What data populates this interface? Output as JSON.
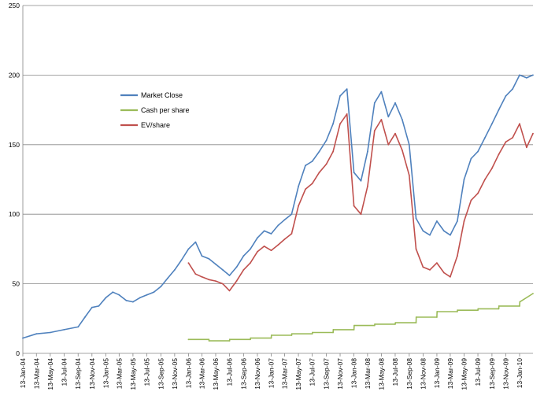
{
  "chart_data": {
    "type": "line",
    "title": "",
    "xlabel": "",
    "ylabel": "",
    "ylim": [
      0,
      250
    ],
    "yticks": [
      0,
      50,
      100,
      150,
      200,
      250
    ],
    "grid": "horizontal",
    "legend_position": "upper-left",
    "xlim": [
      "2004-01-13",
      "2010-03-13"
    ],
    "xtick_labels": [
      "13-Jan-04",
      "13-Mar-04",
      "13-May-04",
      "13-Jul-04",
      "13-Sep-04",
      "13-Nov-04",
      "13-Jan-05",
      "13-Mar-05",
      "13-May-05",
      "13-Jul-05",
      "13-Sep-05",
      "13-Nov-05",
      "13-Jan-06",
      "13-Mar-06",
      "13-May-06",
      "13-Jul-06",
      "13-Sep-06",
      "13-Nov-06",
      "13-Jan-07",
      "13-Mar-07",
      "13-May-07",
      "13-Jul-07",
      "13-Sep-07",
      "13-Nov-07",
      "13-Jan-08",
      "13-Mar-08",
      "13-May-08",
      "13-Jul-08",
      "13-Sep-08",
      "13-Nov-08",
      "13-Jan-09",
      "13-Mar-09",
      "13-May-09",
      "13-Jul-09",
      "13-Sep-09",
      "13-Nov-09",
      "13-Jan-10"
    ],
    "series": [
      {
        "name": "Market Close",
        "color": "#4F81BD",
        "x": [
          "2004-01-13",
          "2004-03-13",
          "2004-05-13",
          "2004-07-13",
          "2004-09-13",
          "2004-10-13",
          "2004-11-13",
          "2004-12-13",
          "2005-01-13",
          "2005-02-13",
          "2005-03-13",
          "2005-04-13",
          "2005-05-13",
          "2005-06-13",
          "2005-07-13",
          "2005-08-13",
          "2005-09-13",
          "2005-10-13",
          "2005-11-13",
          "2005-12-13",
          "2006-01-13",
          "2006-02-13",
          "2006-03-13",
          "2006-04-13",
          "2006-05-13",
          "2006-06-13",
          "2006-07-13",
          "2006-08-13",
          "2006-09-13",
          "2006-10-13",
          "2006-11-13",
          "2006-12-13",
          "2007-01-13",
          "2007-02-13",
          "2007-03-13",
          "2007-04-13",
          "2007-05-13",
          "2007-06-13",
          "2007-07-13",
          "2007-08-13",
          "2007-09-13",
          "2007-10-13",
          "2007-11-13",
          "2007-12-13",
          "2008-01-13",
          "2008-02-13",
          "2008-03-13",
          "2008-04-13",
          "2008-05-13",
          "2008-06-13",
          "2008-07-13",
          "2008-08-13",
          "2008-09-13",
          "2008-10-13",
          "2008-11-13",
          "2008-12-13",
          "2009-01-13",
          "2009-02-13",
          "2009-03-13",
          "2009-04-13",
          "2009-05-13",
          "2009-06-13",
          "2009-07-13",
          "2009-08-13",
          "2009-09-13",
          "2009-10-13",
          "2009-11-13",
          "2009-12-13",
          "2010-01-13",
          "2010-02-13",
          "2010-03-13"
        ],
        "values": [
          11,
          14,
          15,
          17,
          19,
          26,
          33,
          34,
          40,
          44,
          42,
          38,
          37,
          40,
          42,
          44,
          48,
          54,
          60,
          67,
          75,
          80,
          70,
          68,
          64,
          60,
          56,
          62,
          70,
          75,
          83,
          88,
          86,
          92,
          96,
          100,
          120,
          135,
          138,
          145,
          153,
          165,
          185,
          190,
          130,
          124,
          145,
          180,
          188,
          170,
          180,
          168,
          150,
          97,
          88,
          85,
          95,
          88,
          85,
          95,
          125,
          140,
          145,
          155,
          165,
          175,
          185,
          190,
          200,
          198,
          200
        ]
      },
      {
        "name": "Cash per share",
        "color": "#9BBB59",
        "x": [
          "2006-01-13",
          "2006-04-13",
          "2006-04-14",
          "2006-07-13",
          "2006-07-14",
          "2006-10-13",
          "2006-10-14",
          "2007-01-13",
          "2007-01-14",
          "2007-04-13",
          "2007-04-14",
          "2007-07-13",
          "2007-07-14",
          "2007-10-13",
          "2007-10-14",
          "2008-01-13",
          "2008-01-14",
          "2008-04-13",
          "2008-04-14",
          "2008-07-13",
          "2008-07-14",
          "2008-10-13",
          "2008-10-14",
          "2009-01-13",
          "2009-01-14",
          "2009-04-13",
          "2009-04-14",
          "2009-07-13",
          "2009-07-14",
          "2009-10-13",
          "2009-10-14",
          "2010-01-13",
          "2010-01-14",
          "2010-03-13"
        ],
        "values": [
          10,
          10,
          9,
          9,
          10,
          10,
          11,
          11,
          13,
          13,
          14,
          14,
          15,
          15,
          17,
          17,
          20,
          20,
          21,
          21,
          22,
          22,
          26,
          26,
          30,
          30,
          31,
          31,
          32,
          32,
          34,
          34,
          37,
          43
        ]
      },
      {
        "name": "EV/share",
        "color": "#C0504D",
        "x": [
          "2006-01-13",
          "2006-02-13",
          "2006-03-13",
          "2006-04-13",
          "2006-05-13",
          "2006-06-13",
          "2006-07-13",
          "2006-08-13",
          "2006-09-13",
          "2006-10-13",
          "2006-11-13",
          "2006-12-13",
          "2007-01-13",
          "2007-02-13",
          "2007-03-13",
          "2007-04-13",
          "2007-05-13",
          "2007-06-13",
          "2007-07-13",
          "2007-08-13",
          "2007-09-13",
          "2007-10-13",
          "2007-11-13",
          "2007-12-13",
          "2008-01-13",
          "2008-02-13",
          "2008-03-13",
          "2008-04-13",
          "2008-05-13",
          "2008-06-13",
          "2008-07-13",
          "2008-08-13",
          "2008-09-13",
          "2008-10-13",
          "2008-11-13",
          "2008-12-13",
          "2009-01-13",
          "2009-02-13",
          "2009-03-13",
          "2009-04-13",
          "2009-05-13",
          "2009-06-13",
          "2009-07-13",
          "2009-08-13",
          "2009-09-13",
          "2009-10-13",
          "2009-11-13",
          "2009-12-13",
          "2010-01-13",
          "2010-02-13",
          "2010-03-13"
        ],
        "values": [
          65,
          57,
          55,
          53,
          52,
          50,
          45,
          52,
          60,
          65,
          73,
          77,
          74,
          78,
          82,
          86,
          106,
          118,
          122,
          130,
          136,
          145,
          165,
          172,
          106,
          100,
          120,
          160,
          168,
          150,
          158,
          146,
          128,
          75,
          62,
          60,
          65,
          58,
          55,
          70,
          95,
          110,
          115,
          125,
          133,
          143,
          152,
          155,
          165,
          148,
          158
        ]
      }
    ]
  }
}
